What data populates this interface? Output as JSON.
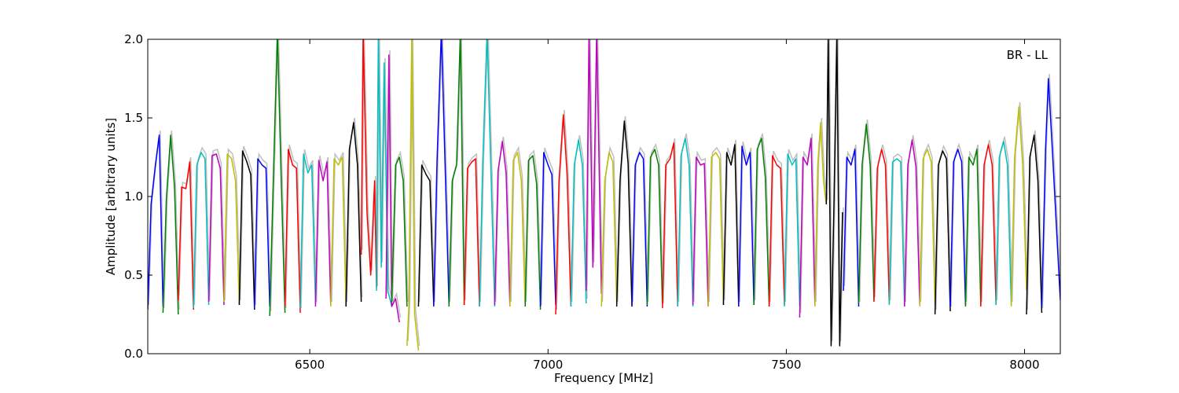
{
  "chart_data": {
    "type": "line",
    "title": "",
    "xlabel": "Frequency [MHz]",
    "ylabel": "Amplitude [arbitrary units]",
    "xlim": [
      6160,
      8075
    ],
    "ylim": [
      0.0,
      2.0
    ],
    "xticks": [
      6500,
      7000,
      7500,
      8000
    ],
    "xtick_labels": [
      "6500",
      "7000",
      "7500",
      "8000"
    ],
    "yticks": [
      0.0,
      0.5,
      1.0,
      1.5,
      2.0
    ],
    "ytick_labels": [
      "0.0",
      "0.5",
      "1.0",
      "1.5",
      "2.0"
    ],
    "grid": false,
    "annotation": "BR - LL",
    "annotation_position": "top-right",
    "background_trace_color": "#bfbfbf",
    "color_cycle": [
      "#0000ff",
      "#008000",
      "#ff0000",
      "#00bfbf",
      "#bf00bf",
      "#bfbf00",
      "#000000"
    ],
    "channel_width_mhz": 32,
    "series": [
      {
        "color": "#0000ff",
        "x": [
          6160,
          6167,
          6176,
          6184,
          6192
        ],
        "y": [
          0.28,
          0.95,
          1.2,
          1.39,
          0.3
        ]
      },
      {
        "color": "#008000",
        "x": [
          6192,
          6199,
          6208,
          6216,
          6224
        ],
        "y": [
          0.26,
          0.98,
          1.39,
          1.06,
          0.25
        ]
      },
      {
        "color": "#ff0000",
        "x": [
          6224,
          6231,
          6240,
          6248,
          6256
        ],
        "y": [
          0.34,
          1.06,
          1.05,
          1.22,
          0.28
        ]
      },
      {
        "color": "#00bfbf",
        "x": [
          6256,
          6263,
          6272,
          6280,
          6288
        ],
        "y": [
          0.29,
          1.2,
          1.28,
          1.24,
          0.31
        ]
      },
      {
        "color": "#bf00bf",
        "x": [
          6288,
          6295,
          6304,
          6312,
          6320
        ],
        "y": [
          0.33,
          1.26,
          1.27,
          1.18,
          0.31
        ]
      },
      {
        "color": "#bfbf00",
        "x": [
          6320,
          6327,
          6336,
          6344,
          6352
        ],
        "y": [
          0.33,
          1.27,
          1.24,
          1.1,
          0.32
        ]
      },
      {
        "color": "#000000",
        "x": [
          6352,
          6359,
          6368,
          6376,
          6384
        ],
        "y": [
          0.31,
          1.29,
          1.22,
          1.14,
          0.28
        ]
      },
      {
        "color": "#0000ff",
        "x": [
          6384,
          6391,
          6400,
          6408,
          6416
        ],
        "y": [
          0.29,
          1.24,
          1.2,
          1.18,
          0.3
        ]
      },
      {
        "color": "#008000",
        "x": [
          6416,
          6423,
          6432,
          6440,
          6448
        ],
        "y": [
          0.24,
          1.05,
          2.05,
          1.1,
          0.26
        ]
      },
      {
        "color": "#ff0000",
        "x": [
          6448,
          6455,
          6464,
          6472,
          6480
        ],
        "y": [
          0.3,
          1.3,
          1.2,
          1.18,
          0.26
        ]
      },
      {
        "color": "#00bfbf",
        "x": [
          6480,
          6487,
          6496,
          6504,
          6512
        ],
        "y": [
          0.29,
          1.27,
          1.15,
          1.2,
          0.32
        ]
      },
      {
        "color": "#bf00bf",
        "x": [
          6512,
          6519,
          6528,
          6536,
          6544
        ],
        "y": [
          0.3,
          1.23,
          1.1,
          1.22,
          0.31
        ]
      },
      {
        "color": "#bfbf00",
        "x": [
          6544,
          6551,
          6560,
          6568,
          6576
        ],
        "y": [
          0.3,
          1.24,
          1.2,
          1.25,
          0.3
        ]
      },
      {
        "color": "#000000",
        "x": [
          6576,
          6583,
          6592,
          6600,
          6608
        ],
        "y": [
          0.3,
          1.3,
          1.47,
          1.2,
          0.33
        ]
      },
      {
        "color": "#ff0000",
        "x": [
          6608,
          6612,
          6620,
          6628,
          6636,
          6640
        ],
        "y": [
          0.63,
          2.05,
          0.9,
          0.5,
          1.1,
          0.42
        ]
      },
      {
        "color": "#00bfbf",
        "x": [
          6640,
          6644,
          6650,
          6656,
          6664,
          6672
        ],
        "y": [
          0.4,
          2.05,
          0.55,
          1.85,
          0.4,
          0.3
        ]
      },
      {
        "color": "#bf00bf",
        "x": [
          6660,
          6666,
          6672,
          6680,
          6688
        ],
        "y": [
          0.35,
          1.9,
          0.3,
          0.35,
          0.2
        ]
      },
      {
        "color": "#008000",
        "x": [
          6672,
          6680,
          6688,
          6696,
          6704
        ],
        "y": [
          0.33,
          1.2,
          1.25,
          1.1,
          0.3
        ]
      },
      {
        "color": "#bfbf00",
        "x": [
          6704,
          6708,
          6714,
          6720,
          6728
        ],
        "y": [
          0.05,
          0.3,
          2.05,
          0.25,
          0.02
        ]
      },
      {
        "color": "#000000",
        "x": [
          6728,
          6735,
          6744,
          6752,
          6760
        ],
        "y": [
          0.3,
          1.2,
          1.14,
          1.1,
          0.31
        ]
      },
      {
        "color": "#0000ff",
        "x": [
          6760,
          6767,
          6776,
          6784,
          6792
        ],
        "y": [
          0.3,
          1.22,
          2.05,
          1.2,
          0.32
        ]
      },
      {
        "color": "#008000",
        "x": [
          6792,
          6799,
          6808,
          6816,
          6824
        ],
        "y": [
          0.3,
          1.1,
          1.2,
          2.05,
          0.31
        ]
      },
      {
        "color": "#ff0000",
        "x": [
          6824,
          6831,
          6840,
          6848,
          6856
        ],
        "y": [
          0.31,
          1.18,
          1.22,
          1.24,
          0.3
        ]
      },
      {
        "color": "#00bfbf",
        "x": [
          6856,
          6863,
          6872,
          6880,
          6888
        ],
        "y": [
          0.3,
          1.22,
          2.05,
          1.18,
          0.3
        ]
      },
      {
        "color": "#bf00bf",
        "x": [
          6888,
          6895,
          6904,
          6912,
          6920
        ],
        "y": [
          0.31,
          1.16,
          1.35,
          1.15,
          0.3
        ]
      },
      {
        "color": "#bfbf00",
        "x": [
          6920,
          6927,
          6936,
          6944,
          6952
        ],
        "y": [
          0.3,
          1.23,
          1.28,
          1.1,
          0.3
        ]
      },
      {
        "color": "#008000",
        "x": [
          6952,
          6959,
          6968,
          6976,
          6984
        ],
        "y": [
          0.3,
          1.23,
          1.26,
          1.08,
          0.28
        ]
      },
      {
        "color": "#0000ff",
        "x": [
          6984,
          6991,
          7000,
          7008,
          7016
        ],
        "y": [
          0.3,
          1.28,
          1.2,
          1.14,
          0.31
        ]
      },
      {
        "color": "#ff0000",
        "x": [
          7016,
          7023,
          7032,
          7040,
          7048
        ],
        "y": [
          0.25,
          1.1,
          1.52,
          1.14,
          0.3
        ]
      },
      {
        "color": "#00bfbf",
        "x": [
          7048,
          7055,
          7064,
          7072,
          7080
        ],
        "y": [
          0.3,
          1.2,
          1.36,
          1.2,
          0.32
        ]
      },
      {
        "color": "#bf00bf",
        "x": [
          7080,
          7086,
          7094,
          7102,
          7112
        ],
        "y": [
          0.4,
          2.05,
          0.55,
          2.05,
          0.38
        ]
      },
      {
        "color": "#bfbf00",
        "x": [
          7112,
          7119,
          7128,
          7136,
          7144
        ],
        "y": [
          0.3,
          1.1,
          1.28,
          1.22,
          0.32
        ]
      },
      {
        "color": "#000000",
        "x": [
          7144,
          7151,
          7160,
          7168,
          7176
        ],
        "y": [
          0.3,
          1.1,
          1.48,
          1.21,
          0.3
        ]
      },
      {
        "color": "#0000ff",
        "x": [
          7176,
          7183,
          7192,
          7200,
          7208
        ],
        "y": [
          0.31,
          1.2,
          1.28,
          1.24,
          0.3
        ]
      },
      {
        "color": "#008000",
        "x": [
          7208,
          7215,
          7224,
          7232,
          7240
        ],
        "y": [
          0.31,
          1.25,
          1.3,
          1.2,
          0.31
        ]
      },
      {
        "color": "#ff0000",
        "x": [
          7240,
          7247,
          7256,
          7264,
          7272
        ],
        "y": [
          0.29,
          1.2,
          1.24,
          1.34,
          0.3
        ]
      },
      {
        "color": "#00bfbf",
        "x": [
          7272,
          7279,
          7288,
          7296,
          7304
        ],
        "y": [
          0.3,
          1.26,
          1.37,
          1.2,
          0.3
        ]
      },
      {
        "color": "#bf00bf",
        "x": [
          7304,
          7311,
          7320,
          7328,
          7336
        ],
        "y": [
          0.31,
          1.25,
          1.2,
          1.21,
          0.3
        ]
      },
      {
        "color": "#bfbf00",
        "x": [
          7336,
          7343,
          7352,
          7360,
          7368
        ],
        "y": [
          0.3,
          1.25,
          1.28,
          1.24,
          0.31
        ]
      },
      {
        "color": "#000000",
        "x": [
          7368,
          7375,
          7384,
          7392,
          7400
        ],
        "y": [
          0.31,
          1.28,
          1.2,
          1.33,
          0.3
        ]
      },
      {
        "color": "#0000ff",
        "x": [
          7400,
          7407,
          7416,
          7424,
          7432
        ],
        "y": [
          0.3,
          1.32,
          1.2,
          1.28,
          0.31
        ]
      },
      {
        "color": "#008000",
        "x": [
          7432,
          7439,
          7448,
          7456,
          7464
        ],
        "y": [
          0.31,
          1.3,
          1.37,
          1.12,
          0.3
        ]
      },
      {
        "color": "#ff0000",
        "x": [
          7464,
          7471,
          7480,
          7488,
          7496
        ],
        "y": [
          0.3,
          1.26,
          1.2,
          1.18,
          0.31
        ]
      },
      {
        "color": "#00bfbf",
        "x": [
          7496,
          7503,
          7512,
          7520,
          7528
        ],
        "y": [
          0.3,
          1.27,
          1.2,
          1.24,
          0.3
        ]
      },
      {
        "color": "#bf00bf",
        "x": [
          7528,
          7535,
          7544,
          7552,
          7560
        ],
        "y": [
          0.23,
          1.25,
          1.2,
          1.37,
          0.31
        ]
      },
      {
        "color": "#bfbf00",
        "x": [
          7560,
          7566,
          7572,
          7578,
          7584
        ],
        "y": [
          0.3,
          1.2,
          1.47,
          1.1,
          0.95
        ]
      },
      {
        "color": "#000000",
        "x": [
          7584,
          7588,
          7594,
          7600,
          7606,
          7612,
          7618
        ],
        "y": [
          0.95,
          2.05,
          0.05,
          0.95,
          2.05,
          0.05,
          0.9
        ]
      },
      {
        "color": "#0000ff",
        "x": [
          7620,
          7627,
          7636,
          7644,
          7652
        ],
        "y": [
          0.4,
          1.25,
          1.2,
          1.3,
          0.3
        ]
      },
      {
        "color": "#008000",
        "x": [
          7652,
          7659,
          7668,
          7676,
          7684
        ],
        "y": [
          0.32,
          1.2,
          1.46,
          1.2,
          0.34
        ]
      },
      {
        "color": "#ff0000",
        "x": [
          7684,
          7691,
          7700,
          7708,
          7716
        ],
        "y": [
          0.33,
          1.18,
          1.3,
          1.2,
          0.32
        ]
      },
      {
        "color": "#00bfbf",
        "x": [
          7716,
          7723,
          7732,
          7740,
          7748
        ],
        "y": [
          0.31,
          1.22,
          1.24,
          1.22,
          0.3
        ]
      },
      {
        "color": "#bf00bf",
        "x": [
          7748,
          7755,
          7764,
          7772,
          7780
        ],
        "y": [
          0.3,
          1.2,
          1.36,
          1.19,
          0.31
        ]
      },
      {
        "color": "#bfbf00",
        "x": [
          7780,
          7787,
          7796,
          7804,
          7812
        ],
        "y": [
          0.3,
          1.24,
          1.3,
          1.22,
          0.31
        ]
      },
      {
        "color": "#000000",
        "x": [
          7812,
          7819,
          7828,
          7836,
          7844
        ],
        "y": [
          0.25,
          1.2,
          1.29,
          1.24,
          0.27
        ]
      },
      {
        "color": "#0000ff",
        "x": [
          7844,
          7851,
          7860,
          7868,
          7876
        ],
        "y": [
          0.3,
          1.22,
          1.3,
          1.22,
          0.31
        ]
      },
      {
        "color": "#008000",
        "x": [
          7876,
          7883,
          7892,
          7900,
          7908
        ],
        "y": [
          0.3,
          1.25,
          1.2,
          1.3,
          0.31
        ]
      },
      {
        "color": "#ff0000",
        "x": [
          7908,
          7915,
          7924,
          7932,
          7940
        ],
        "y": [
          0.3,
          1.2,
          1.33,
          1.2,
          0.31
        ]
      },
      {
        "color": "#00bfbf",
        "x": [
          7940,
          7947,
          7956,
          7964,
          7972
        ],
        "y": [
          0.31,
          1.25,
          1.35,
          1.2,
          0.31
        ]
      },
      {
        "color": "#bfbf00",
        "x": [
          7972,
          7979,
          7988,
          7996,
          8004
        ],
        "y": [
          0.3,
          1.25,
          1.57,
          1.2,
          0.4
        ]
      },
      {
        "color": "#000000",
        "x": [
          8004,
          8011,
          8020,
          8028,
          8036
        ],
        "y": [
          0.25,
          1.25,
          1.39,
          1.1,
          0.26
        ]
      },
      {
        "color": "#0000ff",
        "x": [
          8036,
          8044,
          8050,
          8060,
          8075
        ],
        "y": [
          0.3,
          1.3,
          1.75,
          1.2,
          0.34
        ]
      }
    ]
  }
}
